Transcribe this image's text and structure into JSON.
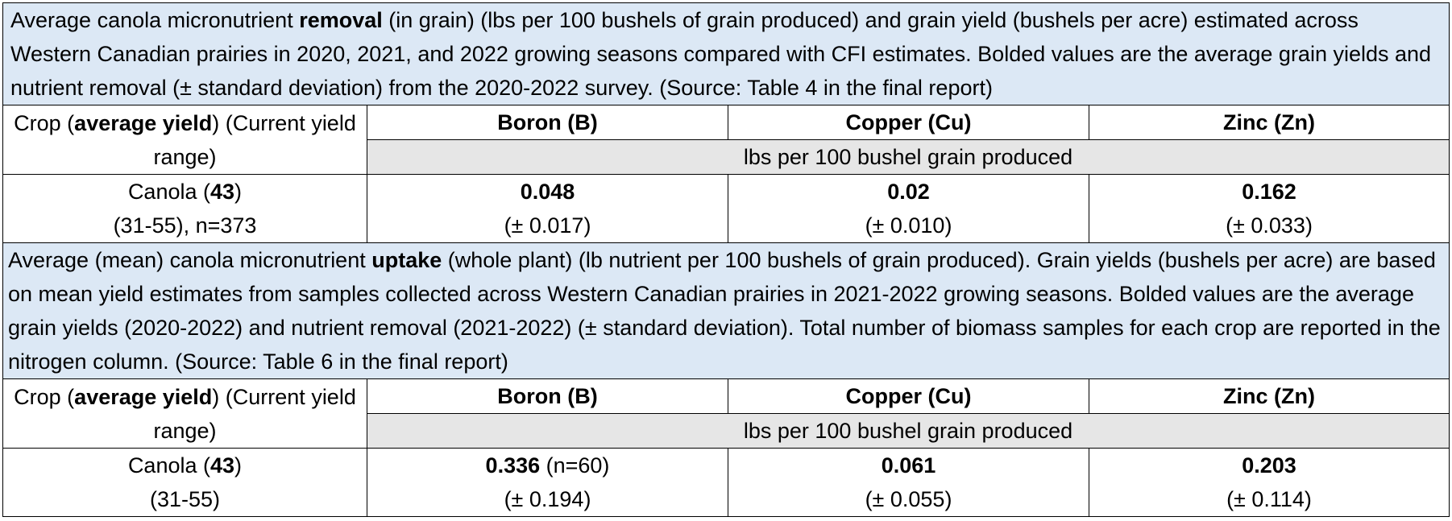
{
  "sections": [
    {
      "caption": {
        "pre": "Average canola micronutrient ",
        "bold": "removal",
        "post": " (in grain) (lbs per 100 bushels of grain produced) and grain yield (bushels per acre) estimated across Western Canadian prairies in 2020, 2021, and 2022 growing seasons compared with CFI estimates. Bolded values are the average grain yields and nutrient removal (± standard deviation) from the 2020-2022 survey. (Source: Table 4 in the final report)"
      },
      "crop_header": {
        "pre": "Crop (",
        "bold": "average yield",
        "post": ")  (Current yield range)"
      },
      "columns": [
        "Boron (B)",
        "Copper (Cu)",
        "Zinc (Zn)"
      ],
      "units": "lbs per 100 bushel grain produced",
      "row": {
        "crop_pre": "Canola (",
        "crop_bold": "43",
        "crop_post": ")",
        "crop_range": "(31-55), n=373",
        "values": [
          {
            "main": "0.048",
            "extra": "",
            "sd": "(± 0.017)"
          },
          {
            "main": "0.02",
            "extra": "",
            "sd": "(± 0.010)"
          },
          {
            "main": "0.162",
            "extra": "",
            "sd": "(± 0.033)"
          }
        ]
      }
    },
    {
      "caption": {
        "pre": "Average (mean) canola micronutrient ",
        "bold": "uptake",
        "post": " (whole plant) (lb nutrient per 100 bushels of grain produced). Grain yields (bushels per acre) are based on mean yield estimates from samples collected across Western Canadian prairies in 2021-2022 growing seasons. Bolded values are the average grain yields (2020-2022) and nutrient removal (2021-2022) (± standard deviation). Total number of biomass samples for each crop are reported in the nitrogen column. (Source: Table 6 in the final report)"
      },
      "crop_header": {
        "pre": "Crop (",
        "bold": "average yield",
        "post": ")  (Current yield range)"
      },
      "columns": [
        "Boron (B)",
        "Copper (Cu)",
        "Zinc (Zn)"
      ],
      "units": "lbs per 100 bushel grain produced",
      "row": {
        "crop_pre": "Canola (",
        "crop_bold": "43",
        "crop_post": ")",
        "crop_range": "(31-55)",
        "values": [
          {
            "main": "0.336",
            "extra": " (n=60)",
            "sd": "(± 0.194)"
          },
          {
            "main": "0.061",
            "extra": "",
            "sd": "(± 0.055)"
          },
          {
            "main": "0.203",
            "extra": "",
            "sd": "(± 0.114)"
          }
        ]
      }
    }
  ]
}
